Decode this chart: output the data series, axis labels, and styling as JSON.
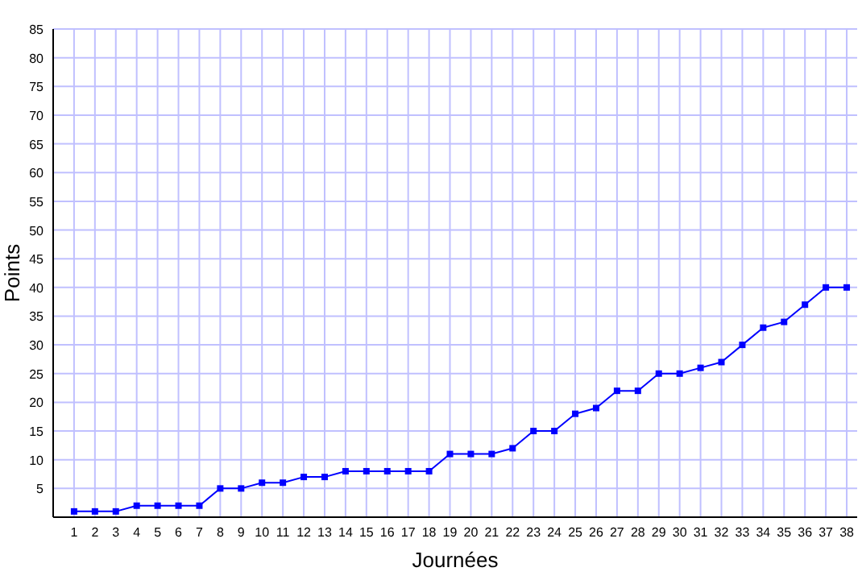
{
  "chart_data": {
    "type": "line",
    "xlabel": "Journées",
    "ylabel": "Points",
    "x": [
      1,
      2,
      3,
      4,
      5,
      6,
      7,
      8,
      9,
      10,
      11,
      12,
      13,
      14,
      15,
      16,
      17,
      18,
      19,
      20,
      21,
      22,
      23,
      24,
      25,
      26,
      27,
      28,
      29,
      30,
      31,
      32,
      33,
      34,
      35,
      36,
      37,
      38
    ],
    "series": [
      {
        "color": "#0000ff",
        "values": [
          1,
          1,
          1,
          2,
          2,
          2,
          2,
          5,
          5,
          6,
          6,
          7,
          7,
          8,
          8,
          8,
          8,
          8,
          11,
          11,
          11,
          12,
          15,
          15,
          18,
          19,
          22,
          22,
          25,
          25,
          26,
          27,
          30,
          33,
          34,
          37,
          40,
          40
        ]
      }
    ],
    "xlim": [
      0,
      38.5
    ],
    "xticks": [
      1,
      2,
      3,
      4,
      5,
      6,
      7,
      8,
      9,
      10,
      11,
      12,
      13,
      14,
      15,
      16,
      17,
      18,
      19,
      20,
      21,
      22,
      23,
      24,
      25,
      26,
      27,
      28,
      29,
      30,
      31,
      32,
      33,
      34,
      35,
      36,
      37,
      38
    ],
    "ylim": [
      0,
      85
    ],
    "yticks": [
      5,
      10,
      15,
      20,
      25,
      30,
      35,
      40,
      45,
      50,
      55,
      60,
      65,
      70,
      75,
      80,
      85
    ],
    "grid": true,
    "marker": "square",
    "line_style": "solid"
  }
}
